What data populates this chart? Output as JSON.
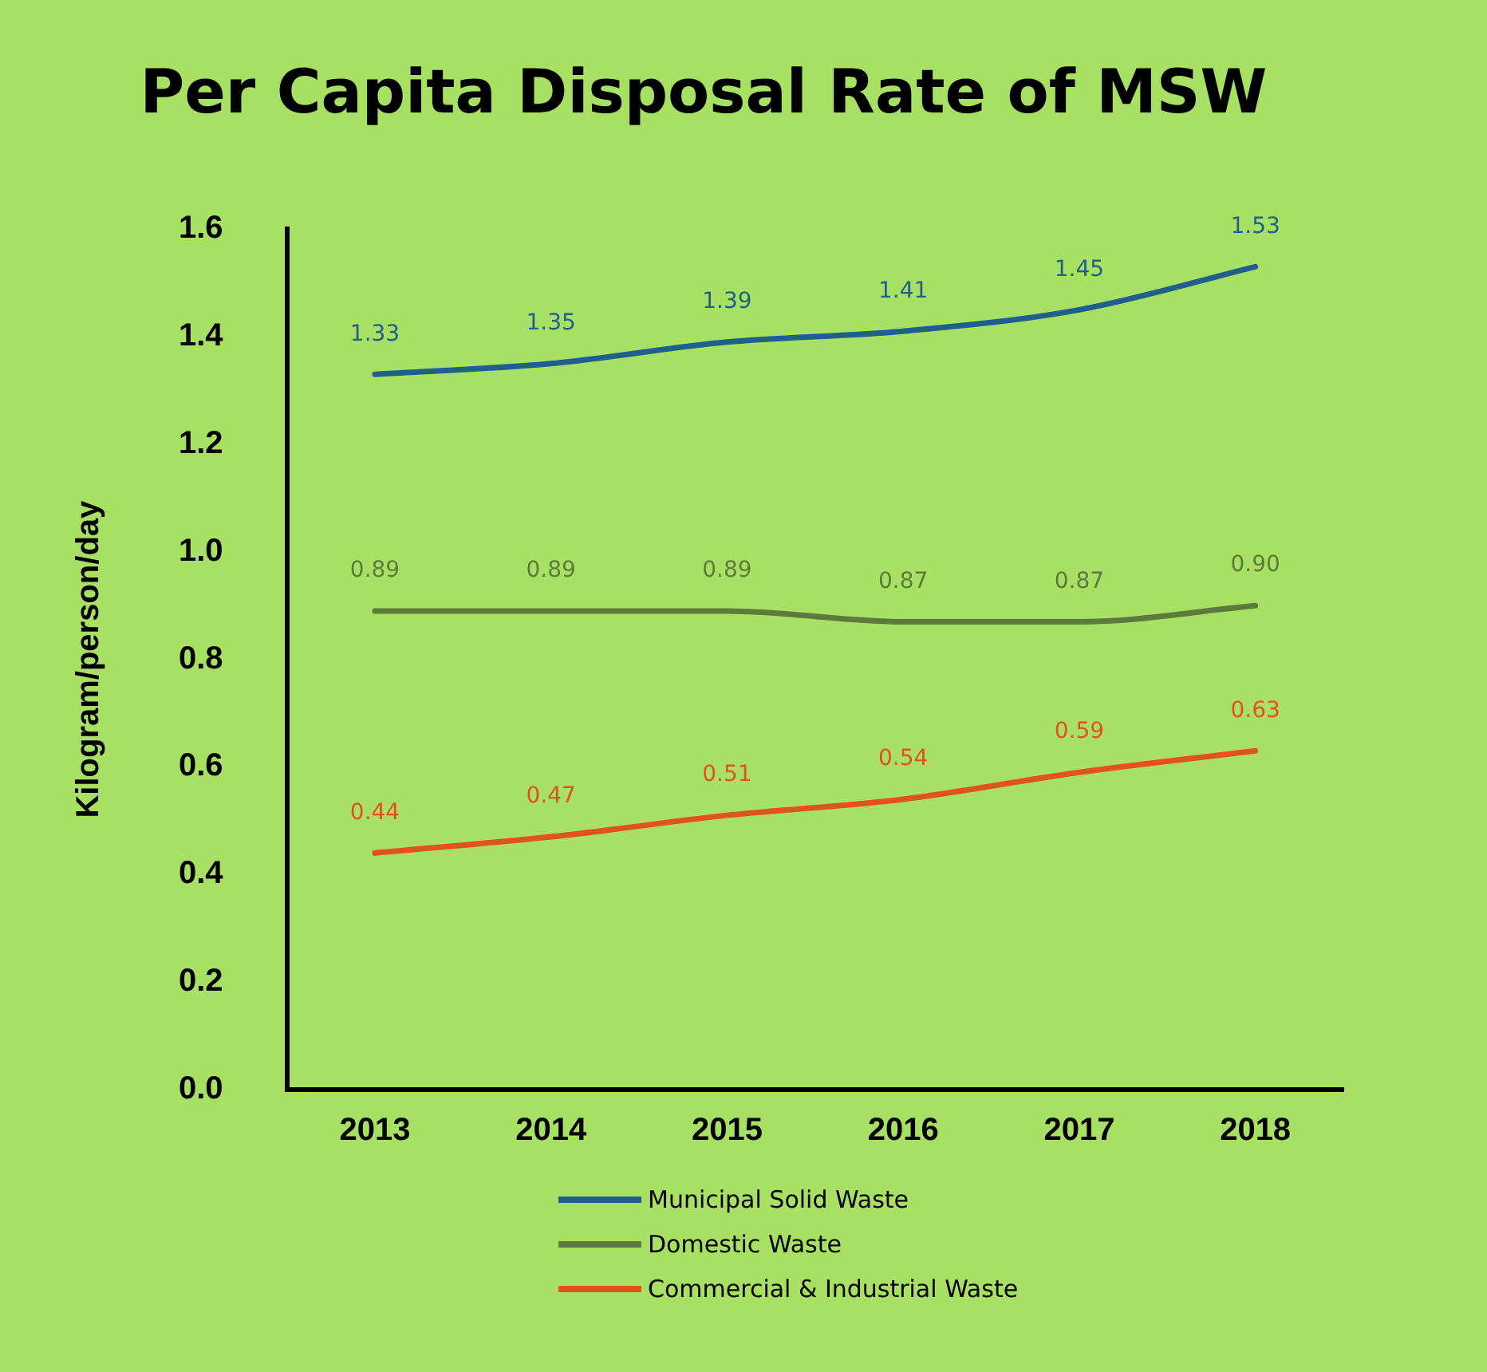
{
  "chart_data": {
    "type": "line",
    "title": "Per Capita Disposal Rate of MSW",
    "ylabel": "Kilogram/person/day",
    "categories": [
      "2013",
      "2014",
      "2015",
      "2016",
      "2017",
      "2018"
    ],
    "series": [
      {
        "name": "Municipal Solid Waste",
        "color": "#1f5f8b",
        "values": [
          1.33,
          1.35,
          1.39,
          1.41,
          1.45,
          1.53
        ],
        "value_labels": [
          "1.33",
          "1.35",
          "1.39",
          "1.41",
          "1.45",
          "1.53"
        ]
      },
      {
        "name": "Domestic Waste",
        "color": "#5b7a3c",
        "values": [
          0.89,
          0.89,
          0.89,
          0.87,
          0.87,
          0.9
        ],
        "value_labels": [
          "0.89",
          "0.89",
          "0.89",
          "0.87",
          "0.87",
          "0.90"
        ]
      },
      {
        "name": "Commercial & Industrial Waste",
        "color": "#e2521b",
        "values": [
          0.44,
          0.47,
          0.51,
          0.54,
          0.59,
          0.63
        ],
        "value_labels": [
          "0.44",
          "0.47",
          "0.51",
          "0.54",
          "0.59",
          "0.63"
        ]
      }
    ],
    "ylim": [
      0,
      1.6
    ],
    "yticks": [
      {
        "value": 0,
        "label": "0.0"
      },
      0.2,
      0.4,
      0.6,
      0.8,
      {
        "value": 1,
        "label": "1.0"
      },
      1.2,
      1.4,
      1.6
    ],
    "grid": false,
    "legend": "bottom",
    "marker": "none",
    "line_style": "solid"
  }
}
